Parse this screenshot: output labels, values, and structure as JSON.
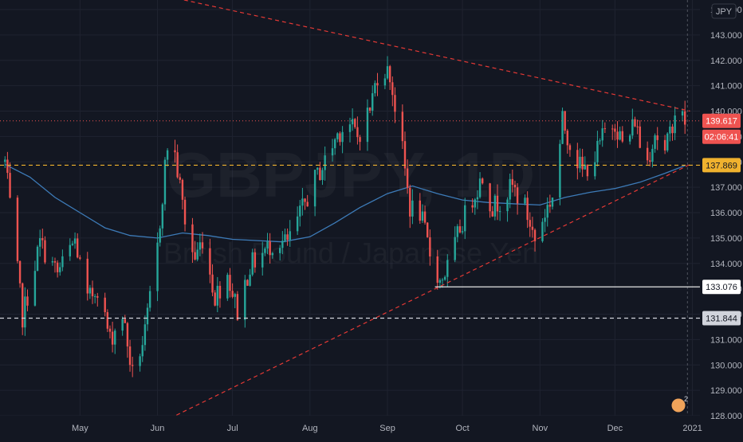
{
  "chart_data": {
    "type": "candlestick",
    "title": "",
    "watermark": {
      "symbol": "GBPJPY, 1D",
      "name": "British Pound / Japanese Yen"
    },
    "currency_label": "JPY",
    "x_labels": [
      "May",
      "Jun",
      "Jul",
      "Aug",
      "Sep",
      "Oct",
      "Nov",
      "Dec",
      "2021"
    ],
    "y_ticks": [
      "128.000",
      "129.000",
      "130.000",
      "131.000",
      "132.000",
      "133.000",
      "134.000",
      "135.000",
      "136.000",
      "137.000",
      "138.000",
      "139.000",
      "140.000",
      "141.000",
      "142.000",
      "143.000",
      "144.000"
    ],
    "ylim": [
      128.0,
      144.0
    ],
    "price_lines": [
      {
        "value": "137.869",
        "style": "dashed",
        "color": "#f0b22e",
        "label_color": "#f0b22e"
      },
      {
        "value": "131.844",
        "style": "dashed",
        "color": "#d1d4dc",
        "label_color": "#d1d4dc"
      },
      {
        "value": "133.076",
        "style": "solid",
        "color": "#ffffff",
        "label_color": "#ffffff"
      }
    ],
    "last_price": {
      "value": "139.617",
      "countdown": "02:06:41",
      "color": "#ef5350"
    },
    "trendlines": [
      {
        "name": "descending-resistance",
        "from": [
          "2020-06-06",
          144.5
        ],
        "to": [
          "2020-12-31",
          140.0
        ],
        "color": "#e53935"
      },
      {
        "name": "ascending-support",
        "from": [
          "2020-06-06",
          127.9
        ],
        "to": [
          "2020-12-31",
          137.9
        ],
        "color": "#e53935"
      }
    ],
    "moving_average": {
      "color": "#3d7bb8",
      "points": [
        [
          "2020-04-01",
          137.9
        ],
        [
          "2020-04-11",
          137.4
        ],
        [
          "2020-04-21",
          136.6
        ],
        [
          "2020-05-01",
          136.0
        ],
        [
          "2020-05-11",
          135.4
        ],
        [
          "2020-05-21",
          135.1
        ],
        [
          "2020-06-01",
          135.0
        ],
        [
          "2020-06-11",
          135.2
        ],
        [
          "2020-06-21",
          135.1
        ],
        [
          "2020-07-01",
          134.95
        ],
        [
          "2020-07-11",
          134.9
        ],
        [
          "2020-07-21",
          134.85
        ],
        [
          "2020-08-01",
          135.05
        ],
        [
          "2020-08-11",
          135.6
        ],
        [
          "2020-08-21",
          136.2
        ],
        [
          "2020-09-01",
          136.75
        ],
        [
          "2020-09-11",
          137.05
        ],
        [
          "2020-09-21",
          136.75
        ],
        [
          "2020-10-01",
          136.5
        ],
        [
          "2020-10-11",
          136.4
        ],
        [
          "2020-10-21",
          136.35
        ],
        [
          "2020-11-01",
          136.3
        ],
        [
          "2020-11-11",
          136.6
        ],
        [
          "2020-11-21",
          136.8
        ],
        [
          "2020-12-01",
          136.95
        ],
        [
          "2020-12-11",
          137.2
        ],
        [
          "2020-12-21",
          137.55
        ],
        [
          "2020-12-29",
          137.85
        ]
      ]
    },
    "candle_colors": {
      "up": "#26a69a",
      "down": "#ef5350"
    },
    "close_path": [
      [
        "2020-04-01",
        138.0
      ],
      [
        "2020-04-08",
        131.9
      ],
      [
        "2020-04-15",
        134.8
      ],
      [
        "2020-04-22",
        133.6
      ],
      [
        "2020-04-29",
        134.9
      ],
      [
        "2020-05-04",
        132.5
      ],
      [
        "2020-05-08",
        133.1
      ],
      [
        "2020-05-13",
        131.0
      ],
      [
        "2020-05-18",
        132.0
      ],
      [
        "2020-05-22",
        129.6
      ],
      [
        "2020-05-27",
        131.2
      ],
      [
        "2020-06-01",
        134.6
      ],
      [
        "2020-06-04",
        137.8
      ],
      [
        "2020-06-06",
        139.5
      ],
      [
        "2020-06-10",
        137.0
      ],
      [
        "2020-06-13",
        135.0
      ],
      [
        "2020-06-16",
        134.2
      ],
      [
        "2020-06-19",
        135.0
      ],
      [
        "2020-06-24",
        132.7
      ],
      [
        "2020-06-29",
        133.6
      ],
      [
        "2020-07-03",
        132.1
      ],
      [
        "2020-07-08",
        133.9
      ],
      [
        "2020-07-13",
        134.4
      ],
      [
        "2020-07-18",
        134.9
      ],
      [
        "2020-07-23",
        134.8
      ],
      [
        "2020-07-28",
        135.9
      ],
      [
        "2020-08-02",
        137.1
      ],
      [
        "2020-08-07",
        138.0
      ],
      [
        "2020-08-12",
        139.1
      ],
      [
        "2020-08-16",
        139.6
      ],
      [
        "2020-08-20",
        139.0
      ],
      [
        "2020-08-25",
        140.1
      ],
      [
        "2020-08-29",
        141.9
      ],
      [
        "2020-09-02",
        141.4
      ],
      [
        "2020-09-07",
        138.4
      ],
      [
        "2020-09-10",
        136.2
      ],
      [
        "2020-09-14",
        136.0
      ],
      [
        "2020-09-18",
        134.4
      ],
      [
        "2020-09-22",
        133.3
      ],
      [
        "2020-09-26",
        134.0
      ],
      [
        "2020-09-30",
        135.4
      ],
      [
        "2020-10-05",
        136.6
      ],
      [
        "2020-10-09",
        137.4
      ],
      [
        "2020-10-13",
        136.2
      ],
      [
        "2020-10-17",
        136.6
      ],
      [
        "2020-10-21",
        137.0
      ],
      [
        "2020-10-26",
        136.2
      ],
      [
        "2020-10-30",
        134.9
      ],
      [
        "2020-11-03",
        136.0
      ],
      [
        "2020-11-07",
        136.9
      ],
      [
        "2020-11-10",
        139.6
      ],
      [
        "2020-11-14",
        138.5
      ],
      [
        "2020-11-18",
        137.6
      ],
      [
        "2020-11-23",
        138.2
      ],
      [
        "2020-11-27",
        139.2
      ],
      [
        "2020-12-01",
        139.6
      ],
      [
        "2020-12-05",
        138.4
      ],
      [
        "2020-12-09",
        139.7
      ],
      [
        "2020-12-13",
        137.7
      ],
      [
        "2020-12-17",
        139.2
      ],
      [
        "2020-12-21",
        138.3
      ],
      [
        "2020-12-25",
        140.0
      ],
      [
        "2020-12-29",
        139.617
      ]
    ],
    "x_range": [
      "2020-03-30",
      "2021-01-04"
    ],
    "axis_side": "right",
    "notification_badge": "2",
    "grid": true
  }
}
